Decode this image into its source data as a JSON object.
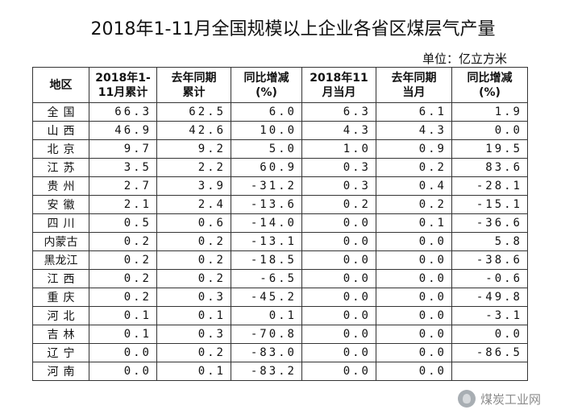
{
  "title": "2018年1-11月全国规模以上企业各省区煤层气产量",
  "unit": "单位：亿立方米",
  "headers": [
    [
      "地区"
    ],
    [
      "2018年1-",
      "11月累计"
    ],
    [
      "去年同期",
      "累计"
    ],
    [
      "同比增减",
      "(%)"
    ],
    [
      "2018年11",
      "月当月"
    ],
    [
      "去年同期",
      "当月"
    ],
    [
      "同比增减",
      "(%)"
    ]
  ],
  "rows": [
    {
      "region": "全国",
      "cum": "66.3",
      "cum_prev": "62.5",
      "cum_yoy": "6.0",
      "month": "6.3",
      "month_prev": "6.1",
      "month_yoy": "1.9"
    },
    {
      "region": "山西",
      "cum": "46.9",
      "cum_prev": "42.6",
      "cum_yoy": "10.0",
      "month": "4.3",
      "month_prev": "4.3",
      "month_yoy": "0.0"
    },
    {
      "region": "北京",
      "cum": "9.7",
      "cum_prev": "9.2",
      "cum_yoy": "5.0",
      "month": "1.0",
      "month_prev": "0.9",
      "month_yoy": "19.5"
    },
    {
      "region": "江苏",
      "cum": "3.5",
      "cum_prev": "2.2",
      "cum_yoy": "60.9",
      "month": "0.3",
      "month_prev": "0.2",
      "month_yoy": "83.6"
    },
    {
      "region": "贵州",
      "cum": "2.7",
      "cum_prev": "3.9",
      "cum_yoy": "-31.2",
      "month": "0.3",
      "month_prev": "0.4",
      "month_yoy": "-28.1"
    },
    {
      "region": "安徽",
      "cum": "2.1",
      "cum_prev": "2.4",
      "cum_yoy": "-13.6",
      "month": "0.2",
      "month_prev": "0.2",
      "month_yoy": "-15.1"
    },
    {
      "region": "四川",
      "cum": "0.5",
      "cum_prev": "0.6",
      "cum_yoy": "-14.0",
      "month": "0.0",
      "month_prev": "0.1",
      "month_yoy": "-36.6"
    },
    {
      "region": "内蒙古",
      "cum": "0.2",
      "cum_prev": "0.2",
      "cum_yoy": "-13.1",
      "month": "0.0",
      "month_prev": "0.0",
      "month_yoy": "5.8"
    },
    {
      "region": "黑龙江",
      "cum": "0.2",
      "cum_prev": "0.2",
      "cum_yoy": "-18.5",
      "month": "0.0",
      "month_prev": "0.0",
      "month_yoy": "-38.6"
    },
    {
      "region": "江西",
      "cum": "0.2",
      "cum_prev": "0.2",
      "cum_yoy": "-6.5",
      "month": "0.0",
      "month_prev": "0.0",
      "month_yoy": "-0.6"
    },
    {
      "region": "重庆",
      "cum": "0.2",
      "cum_prev": "0.3",
      "cum_yoy": "-45.2",
      "month": "0.0",
      "month_prev": "0.0",
      "month_yoy": "-49.8"
    },
    {
      "region": "河北",
      "cum": "0.1",
      "cum_prev": "0.1",
      "cum_yoy": "0.1",
      "month": "0.0",
      "month_prev": "0.0",
      "month_yoy": "-3.1"
    },
    {
      "region": "吉林",
      "cum": "0.1",
      "cum_prev": "0.3",
      "cum_yoy": "-70.8",
      "month": "0.0",
      "month_prev": "0.0",
      "month_yoy": "0.0"
    },
    {
      "region": "辽宁",
      "cum": "0.0",
      "cum_prev": "0.2",
      "cum_yoy": "-83.0",
      "month": "0.0",
      "month_prev": "0.0",
      "month_yoy": "-86.5"
    },
    {
      "region": "河南",
      "cum": "0.0",
      "cum_prev": "0.1",
      "cum_yoy": "-83.2",
      "month": "0.0",
      "month_prev": "0.0",
      "month_yoy": ""
    }
  ],
  "watermark": {
    "text": "煤炭工业网",
    "icon": "wechat-logo-icon"
  }
}
